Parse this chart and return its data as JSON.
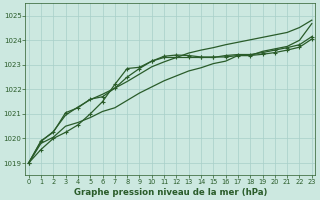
{
  "title": "Graphe pression niveau de la mer (hPa)",
  "x_ticks": [
    0,
    1,
    2,
    3,
    4,
    5,
    6,
    7,
    8,
    9,
    10,
    11,
    12,
    13,
    14,
    15,
    16,
    17,
    18,
    19,
    20,
    21,
    22,
    23
  ],
  "ylim": [
    1018.5,
    1025.5
  ],
  "xlim": [
    -0.3,
    23.3
  ],
  "yticks": [
    1019,
    1020,
    1021,
    1022,
    1023,
    1024,
    1025
  ],
  "bg_color": "#cce8e0",
  "grid_color": "#a8cfc8",
  "line_color": "#2a5c2a",
  "line1": [
    1019.0,
    1019.55,
    1020.0,
    1020.25,
    1020.55,
    1021.0,
    1021.5,
    1022.2,
    1022.85,
    1022.9,
    1023.15,
    1023.35,
    1023.4,
    1023.38,
    1023.32,
    1023.32,
    1023.32,
    1023.38,
    1023.38,
    1023.43,
    1023.5,
    1023.6,
    1023.72,
    1024.05
  ],
  "line2": [
    1019.0,
    1019.9,
    1020.25,
    1021.05,
    1021.25,
    1021.6,
    1021.7,
    1022.05,
    1022.5,
    1022.85,
    1023.15,
    1023.3,
    1023.3,
    1023.3,
    1023.3,
    1023.3,
    1023.38,
    1023.42,
    1023.42,
    1023.5,
    1023.6,
    1023.7,
    1023.82,
    1024.15
  ],
  "line3": [
    1019.0,
    1019.8,
    1020.05,
    1020.5,
    1020.65,
    1020.85,
    1021.1,
    1021.25,
    1021.55,
    1021.85,
    1022.1,
    1022.35,
    1022.55,
    1022.75,
    1022.88,
    1023.05,
    1023.15,
    1023.38,
    1023.38,
    1023.55,
    1023.65,
    1023.75,
    1024.0,
    1024.68
  ],
  "line4": [
    1019.0,
    1019.88,
    1020.28,
    1020.95,
    1021.28,
    1021.58,
    1021.8,
    1022.05,
    1022.32,
    1022.62,
    1022.92,
    1023.12,
    1023.3,
    1023.48,
    1023.6,
    1023.7,
    1023.82,
    1023.92,
    1024.02,
    1024.12,
    1024.22,
    1024.32,
    1024.52,
    1024.82
  ]
}
